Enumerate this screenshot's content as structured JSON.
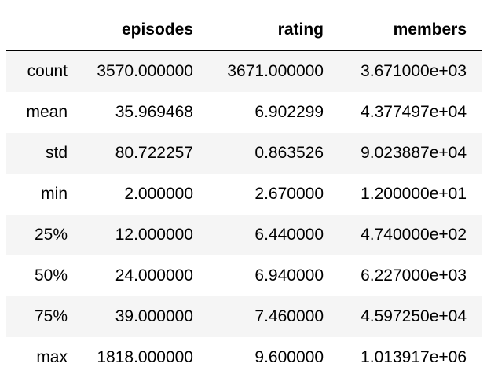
{
  "table": {
    "columns": [
      "episodes",
      "rating",
      "members"
    ],
    "rows": [
      {
        "label": "count",
        "values": [
          "3570.000000",
          "3671.000000",
          "3.671000e+03"
        ]
      },
      {
        "label": "mean",
        "values": [
          "35.969468",
          "6.902299",
          "4.377497e+04"
        ]
      },
      {
        "label": "std",
        "values": [
          "80.722257",
          "0.863526",
          "9.023887e+04"
        ]
      },
      {
        "label": "min",
        "values": [
          "2.000000",
          "2.670000",
          "1.200000e+01"
        ]
      },
      {
        "label": "25%",
        "values": [
          "12.000000",
          "6.440000",
          "4.740000e+02"
        ]
      },
      {
        "label": "50%",
        "values": [
          "24.000000",
          "6.940000",
          "6.227000e+03"
        ]
      },
      {
        "label": "75%",
        "values": [
          "39.000000",
          "7.460000",
          "4.597250e+04"
        ]
      },
      {
        "label": "max",
        "values": [
          "1818.000000",
          "9.600000",
          "1.013917e+06"
        ]
      }
    ]
  }
}
